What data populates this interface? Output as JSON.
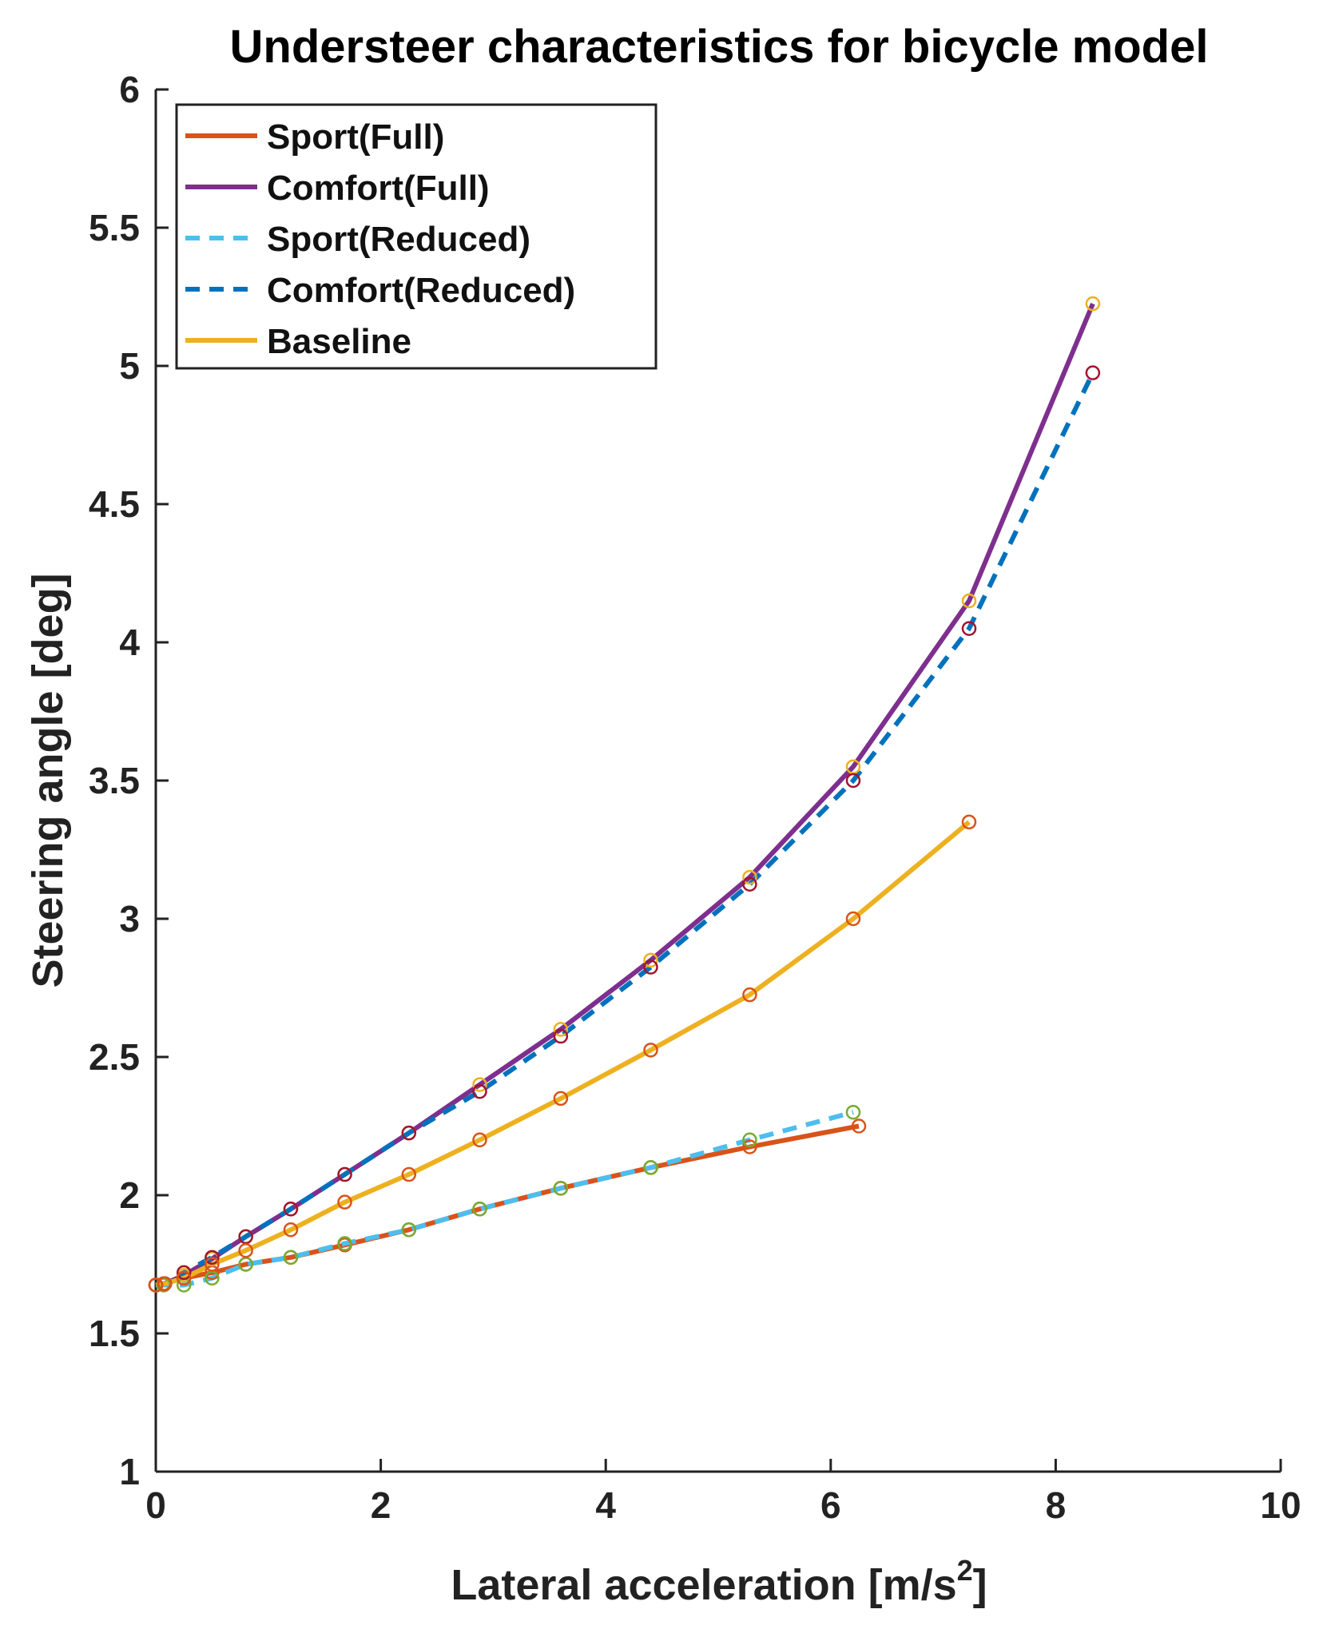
{
  "chart_data": {
    "type": "line",
    "title": "Understeer characteristics for bicycle model",
    "xlabel": "Lateral acceleration [m/s",
    "xlabel_superscript": "2",
    "xlabel_suffix": "]",
    "ylabel": "Steering angle [deg]",
    "xlim": [
      0,
      10
    ],
    "ylim": [
      1,
      6
    ],
    "xticks": [
      0,
      2,
      4,
      6,
      8,
      10
    ],
    "xtick_labels": [
      "0",
      "2",
      "4",
      "6",
      "8",
      "10"
    ],
    "yticks": [
      1,
      1.5,
      2,
      2.5,
      3,
      3.5,
      4,
      4.5,
      5,
      5.5,
      6
    ],
    "ytick_labels": [
      "1",
      "1.5",
      "2",
      "2.5",
      "3",
      "3.5",
      "4",
      "4.5",
      "5",
      "5.5",
      "6"
    ],
    "grid": false,
    "legend_position": "top-left",
    "series": [
      {
        "name": "Sport(Full)",
        "color": "#D95319",
        "dash": "solid",
        "marker_color": "#D95319",
        "x": [
          0.0,
          0.07,
          0.25,
          0.5,
          0.8,
          1.2,
          1.68,
          2.25,
          2.88,
          3.6,
          4.4,
          5.28,
          6.25
        ],
        "y": [
          1.675,
          1.68,
          1.7,
          1.72,
          1.75,
          1.775,
          1.82,
          1.875,
          1.95,
          2.025,
          2.1,
          2.175,
          2.25
        ]
      },
      {
        "name": "Comfort(Full)",
        "color": "#7E2F8E",
        "dash": "solid",
        "marker_color": "#EDB120",
        "x": [
          0.0,
          0.08,
          0.25,
          0.5,
          0.8,
          1.2,
          1.68,
          2.25,
          2.88,
          3.6,
          4.4,
          5.28,
          6.2,
          7.23,
          8.33
        ],
        "y": [
          1.675,
          1.68,
          1.71,
          1.77,
          1.85,
          1.95,
          2.075,
          2.225,
          2.4,
          2.6,
          2.85,
          3.15,
          3.55,
          4.15,
          5.225
        ]
      },
      {
        "name": "Sport(Reduced)",
        "color": "#4DBEEE",
        "dash": "dashed",
        "marker_color": "#77AC30",
        "x": [
          0.0,
          0.07,
          0.25,
          0.5,
          0.8,
          1.2,
          1.68,
          2.25,
          2.88,
          3.6,
          4.4,
          5.28,
          6.2
        ],
        "y": [
          1.675,
          1.675,
          1.675,
          1.7,
          1.75,
          1.775,
          1.825,
          1.875,
          1.95,
          2.025,
          2.1,
          2.2,
          2.3
        ]
      },
      {
        "name": "Comfort(Reduced)",
        "color": "#0072BD",
        "dash": "dashed",
        "marker_color": "#A2142F",
        "x": [
          0.0,
          0.08,
          0.25,
          0.5,
          0.8,
          1.2,
          1.68,
          2.25,
          2.88,
          3.6,
          4.4,
          5.28,
          6.2,
          7.23,
          8.33
        ],
        "y": [
          1.675,
          1.68,
          1.72,
          1.775,
          1.85,
          1.95,
          2.075,
          2.225,
          2.375,
          2.575,
          2.825,
          3.125,
          3.5,
          4.05,
          4.975
        ]
      },
      {
        "name": "Baseline",
        "color": "#EDB120",
        "dash": "solid",
        "marker_color": "#D95319",
        "x": [
          0.0,
          0.08,
          0.25,
          0.5,
          0.8,
          1.2,
          1.68,
          2.25,
          2.88,
          3.6,
          4.4,
          5.28,
          6.2,
          7.23
        ],
        "y": [
          1.675,
          1.68,
          1.7,
          1.75,
          1.8,
          1.875,
          1.975,
          2.075,
          2.2,
          2.35,
          2.525,
          2.725,
          3.0,
          3.35
        ]
      }
    ]
  }
}
